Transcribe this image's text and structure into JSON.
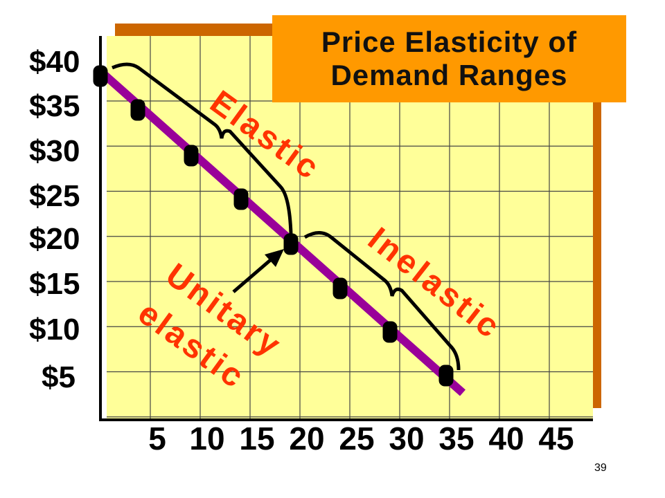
{
  "slide": {
    "title_line1": "Price Elasticity of",
    "title_line2": "Demand Ranges",
    "page_number": "39"
  },
  "colors": {
    "background": "#ffffff",
    "plot_fill": "#ffff99",
    "plot_shadow": "#cc6600",
    "grid": "#444444",
    "axis": "#000000",
    "title_box": "#ff9900",
    "demand_line": "#990099",
    "annotation_text": "#ff3300",
    "point": "#000000"
  },
  "chart_data": {
    "type": "line",
    "title": "Price Elasticity of Demand Ranges",
    "xlabel": "",
    "ylabel": "",
    "x_ticks": [
      "5",
      "10",
      "15",
      "20",
      "25",
      "30",
      "35",
      "40",
      "45"
    ],
    "y_ticks": [
      "$40",
      "$35",
      "$30",
      "$25",
      "$20",
      "$15",
      "$10",
      "$5"
    ],
    "xlim": [
      0,
      50
    ],
    "ylim": [
      0,
      45
    ],
    "grid": true,
    "series": [
      {
        "x": [
          0,
          5,
          10,
          15,
          20,
          25,
          30,
          35
        ],
        "y": [
          40,
          35,
          30,
          25,
          20,
          15,
          10,
          5
        ]
      }
    ],
    "annotations": [
      {
        "text": "Elastic",
        "range_x": [
          0,
          20
        ]
      },
      {
        "text": "Inelastic",
        "range_x": [
          20,
          35
        ]
      },
      {
        "text_line1": "Unitary",
        "text_line2": "elastic",
        "points_to_x": 20,
        "points_to_y": 20
      }
    ]
  }
}
